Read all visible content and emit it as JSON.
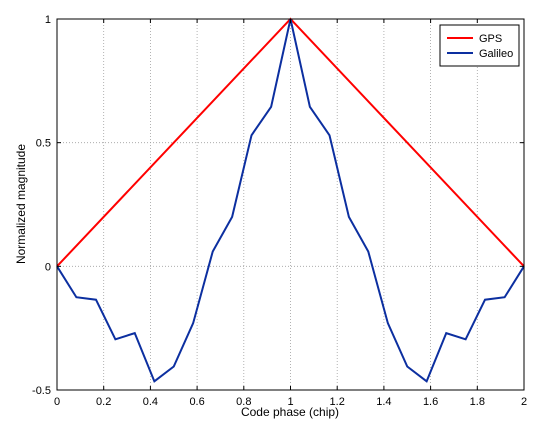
{
  "chart_data": {
    "type": "line",
    "title": "",
    "xlabel": "Code phase (chip)",
    "ylabel": "Normalized magnitude",
    "xlim": [
      0,
      2
    ],
    "ylim": [
      -0.5,
      1
    ],
    "xticks": [
      0,
      0.2,
      0.4,
      0.6,
      0.8,
      1,
      1.2,
      1.4,
      1.6,
      1.8,
      2
    ],
    "xtick_labels": [
      "0",
      "0.2",
      "0.4",
      "0.6",
      "0.8",
      "1",
      "1.2",
      "1.4",
      "1.6",
      "1.8",
      "2"
    ],
    "yticks": [
      -0.5,
      0,
      0.5,
      1
    ],
    "ytick_labels": [
      "-0.5",
      "0",
      "0.5",
      "1"
    ],
    "grid": true,
    "legend_position": "top-right",
    "series": [
      {
        "name": "GPS",
        "color": "#ff0000",
        "x": [
          0,
          1,
          2
        ],
        "y": [
          0,
          1,
          0
        ]
      },
      {
        "name": "Galileo",
        "color": "#0c2fa0",
        "x": [
          0,
          0.083,
          0.167,
          0.25,
          0.333,
          0.417,
          0.5,
          0.583,
          0.667,
          0.75,
          0.833,
          0.917,
          1,
          1.083,
          1.167,
          1.25,
          1.333,
          1.417,
          1.5,
          1.583,
          1.667,
          1.75,
          1.833,
          1.917,
          2
        ],
        "y": [
          0,
          -0.125,
          -0.135,
          -0.295,
          -0.27,
          -0.465,
          -0.405,
          -0.23,
          0.06,
          0.2,
          0.53,
          0.645,
          1,
          0.645,
          0.53,
          0.2,
          0.06,
          -0.23,
          -0.405,
          -0.465,
          -0.27,
          -0.295,
          -0.135,
          -0.125,
          0
        ]
      }
    ]
  }
}
